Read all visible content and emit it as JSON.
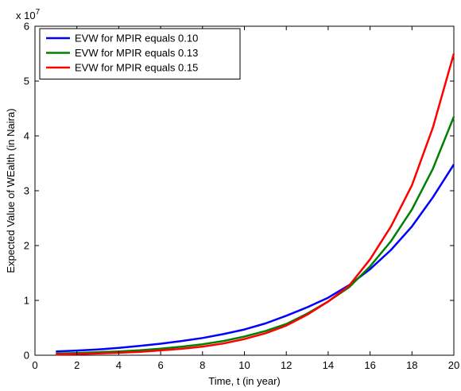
{
  "chart_data": {
    "type": "line",
    "xlabel": "Time, t (in year)",
    "ylabel": "Expected Value of WEalth (in Naira)",
    "y_multiplier_label": "x 10",
    "y_multiplier_exponent": "7",
    "xlim": [
      0,
      20
    ],
    "ylim": [
      0,
      6
    ],
    "x_ticks": [
      0,
      2,
      4,
      6,
      8,
      10,
      12,
      14,
      16,
      18,
      20
    ],
    "y_ticks": [
      0,
      1,
      2,
      3,
      4,
      5,
      6
    ],
    "grid": false,
    "legend_position": "top-left",
    "x": [
      1,
      2,
      3,
      4,
      5,
      6,
      7,
      8,
      9,
      10,
      11,
      12,
      13,
      14,
      15,
      16,
      17,
      18,
      19,
      20
    ],
    "series": [
      {
        "name": "EVW for MPIR equals 0.10",
        "color": "#0000ff",
        "values": [
          0.07,
          0.085,
          0.105,
          0.135,
          0.17,
          0.21,
          0.26,
          0.315,
          0.385,
          0.47,
          0.58,
          0.72,
          0.875,
          1.05,
          1.28,
          1.57,
          1.92,
          2.35,
          2.88,
          3.48
        ]
      },
      {
        "name": "EVW for MPIR equals 0.13",
        "color": "#008000",
        "values": [
          0.03,
          0.04,
          0.055,
          0.07,
          0.09,
          0.12,
          0.155,
          0.2,
          0.26,
          0.34,
          0.44,
          0.57,
          0.76,
          0.98,
          1.24,
          1.62,
          2.08,
          2.66,
          3.4,
          4.35
        ]
      },
      {
        "name": "EVW for MPIR equals 0.15",
        "color": "#ff0000",
        "values": [
          0.015,
          0.022,
          0.032,
          0.045,
          0.063,
          0.088,
          0.118,
          0.158,
          0.215,
          0.295,
          0.4,
          0.54,
          0.74,
          0.98,
          1.27,
          1.75,
          2.35,
          3.1,
          4.15,
          5.5
        ]
      }
    ]
  }
}
